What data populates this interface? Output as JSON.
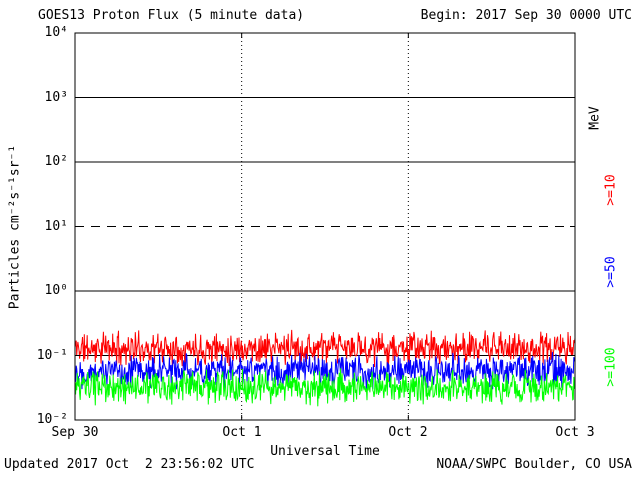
{
  "header": {
    "title": "GOES13 Proton Flux (5 minute data)",
    "begin": "Begin: 2017 Sep 30 0000 UTC"
  },
  "footer": {
    "updated": "Updated 2017 Oct  2 23:56:02 UTC",
    "source": "NOAA/SWPC Boulder, CO USA"
  },
  "chart_data": {
    "type": "line",
    "title": "GOES13 Proton Flux (5 minute data)",
    "xlabel": "Universal Time",
    "ylabel": "Particles cm⁻²s⁻¹sr⁻¹",
    "x_ticks": [
      "Sep 30",
      "Oct 1",
      "Oct 2",
      "Oct 3"
    ],
    "y_ticks": [
      "10⁴",
      "10³",
      "10²",
      "10¹",
      "10⁰",
      "10⁻¹",
      "10⁻²"
    ],
    "ylim_log10": [
      -2,
      4
    ],
    "x_days": 3,
    "points": 864,
    "grid": {
      "solid_decades": [
        3,
        2,
        0,
        -1
      ],
      "dashed_decades": [
        1
      ],
      "vertical_dotted_days": [
        1,
        2
      ]
    },
    "right_axis": {
      "unit": "MeV",
      "unit_color": "#000000"
    },
    "series": [
      {
        "label": ">=10",
        "name": "protons >=10 MeV",
        "color": "#ff0000",
        "base": 0.13,
        "noise_decades": 0.3,
        "seed": 11
      },
      {
        "label": ">=50",
        "name": "protons >=50 MeV",
        "color": "#0000ff",
        "base": 0.058,
        "noise_decades": 0.3,
        "seed": 22
      },
      {
        "label": ">=100",
        "name": "protons >=100 MeV",
        "color": "#00ff00",
        "base": 0.032,
        "noise_decades": 0.3,
        "seed": 33
      }
    ]
  }
}
